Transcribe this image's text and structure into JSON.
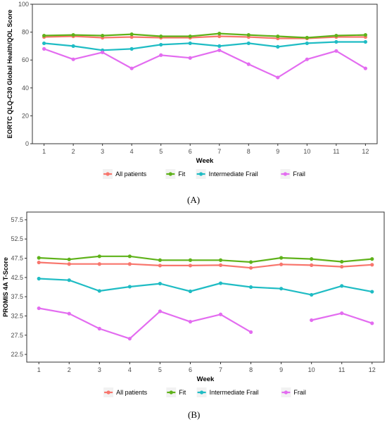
{
  "panels": [
    {
      "label": "(A)"
    },
    {
      "label": "(B)"
    }
  ],
  "colors": {
    "All patients": "#f8766d",
    "Fit": "#5fb21a",
    "Intermediate Frail": "#1fbcc4",
    "Frail": "#e36cf0"
  },
  "chart_data": [
    {
      "type": "line",
      "ylabel": "EORTC QLQ-C30 Global Health/QOL Score",
      "xlabel": "Week",
      "x": [
        1,
        2,
        3,
        4,
        5,
        6,
        7,
        8,
        9,
        10,
        11,
        12
      ],
      "xticks": [
        "1",
        "2",
        "3",
        "4",
        "5",
        "6",
        "7",
        "8",
        "9",
        "10",
        "11",
        "12"
      ],
      "ylim": [
        0,
        100
      ],
      "yticks": [
        "0",
        "20",
        "40",
        "60",
        "80",
        "100"
      ],
      "grid": false,
      "legend": "bottom",
      "series": [
        {
          "name": "All patients",
          "values": [
            76.5,
            77,
            76,
            76.5,
            76,
            76,
            77,
            76.5,
            75.5,
            75.5,
            76.5,
            76.5
          ]
        },
        {
          "name": "Fit",
          "values": [
            77.5,
            78,
            77.5,
            78.5,
            77,
            77,
            79,
            78,
            77,
            76,
            77.5,
            78
          ]
        },
        {
          "name": "Intermediate Frail",
          "values": [
            72,
            70,
            67,
            68,
            71,
            72,
            70,
            72,
            69.5,
            72,
            73,
            73
          ]
        },
        {
          "name": "Frail",
          "values": [
            68,
            60.5,
            65.5,
            54,
            63.5,
            61.5,
            67,
            57,
            47.5,
            60.5,
            66.5,
            54
          ]
        }
      ]
    },
    {
      "type": "line",
      "ylabel": "PROMIS 4A T-Score",
      "xlabel": "Week",
      "x": [
        1,
        2,
        3,
        4,
        5,
        6,
        7,
        8,
        9,
        10,
        11,
        12
      ],
      "xticks": [
        "1",
        "2",
        "3",
        "4",
        "5",
        "6",
        "7",
        "8",
        "9",
        "10",
        "11",
        "12"
      ],
      "ylim": [
        20.5,
        59.5
      ],
      "yticks": [
        "22.5",
        "27.5",
        "32.5",
        "37.5",
        "42.5",
        "47.5",
        "52.5",
        "57.5"
      ],
      "grid": false,
      "legend": "bottom",
      "series": [
        {
          "name": "All patients",
          "values": [
            46.4,
            46.0,
            46.0,
            46.0,
            45.6,
            45.6,
            45.7,
            45.0,
            45.9,
            45.7,
            45.3,
            45.8
          ]
        },
        {
          "name": "Fit",
          "values": [
            47.6,
            47.2,
            48.0,
            48.0,
            47.0,
            47.0,
            47.0,
            46.5,
            47.6,
            47.3,
            46.6,
            47.3
          ]
        },
        {
          "name": "Intermediate Frail",
          "values": [
            42.2,
            41.8,
            39.0,
            40.1,
            40.9,
            38.9,
            41.0,
            40.0,
            39.6,
            38.0,
            40.3,
            38.8
          ]
        },
        {
          "name": "Frail",
          "values": [
            34.5,
            33.1,
            29.2,
            26.6,
            33.7,
            31.0,
            32.9,
            28.3,
            null,
            31.4,
            33.2,
            30.6
          ]
        }
      ]
    }
  ]
}
